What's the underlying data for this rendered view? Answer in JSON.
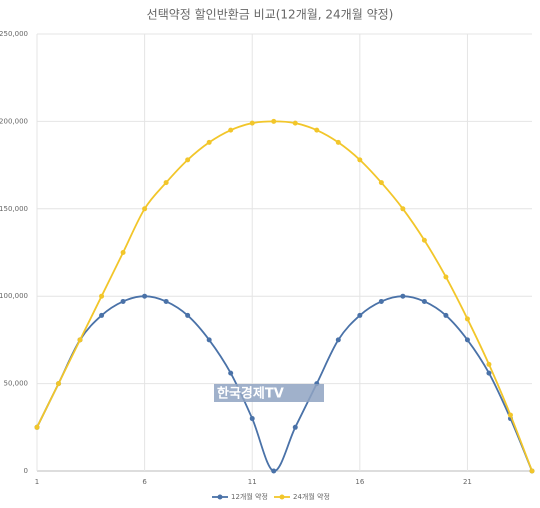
{
  "chart_data": {
    "type": "line",
    "title": "선택약정 할인반환금 비교(12개월, 24개월 약정)",
    "x": [
      1,
      2,
      3,
      4,
      5,
      6,
      7,
      8,
      9,
      10,
      11,
      12,
      13,
      14,
      15,
      16,
      17,
      18,
      19,
      20,
      21,
      22,
      23,
      24
    ],
    "series": [
      {
        "name": "12개월 약정",
        "color": "#4a72a8",
        "values": [
          25000,
          50000,
          75000,
          89000,
          97000,
          100000,
          97000,
          89000,
          75000,
          56000,
          30000,
          0,
          25000,
          50000,
          75000,
          89000,
          97000,
          100000,
          97000,
          89000,
          75000,
          56000,
          30000,
          0
        ]
      },
      {
        "name": "24개월 약정",
        "color": "#f2c62a",
        "values": [
          25000,
          50000,
          75000,
          100000,
          125000,
          150000,
          165000,
          178000,
          188000,
          195000,
          199000,
          200000,
          199000,
          195000,
          188000,
          178000,
          165000,
          150000,
          132000,
          111000,
          87000,
          61000,
          32000,
          0
        ]
      }
    ],
    "xlim": [
      1,
      24
    ],
    "xticks": [
      1,
      6,
      11,
      16,
      21
    ],
    "ylim": [
      0,
      250000
    ],
    "yticks": [
      0,
      {
        "value": 50000,
        "label": "50,000"
      },
      {
        "value": 100000,
        "label": "100,000"
      },
      {
        "value": 150000,
        "label": "150,000"
      },
      {
        "value": 200000,
        "label": "200,000"
      },
      {
        "value": 250000,
        "label": "250,000"
      }
    ],
    "grid": true,
    "legend": "bottom",
    "watermark": "한국경제TV"
  }
}
